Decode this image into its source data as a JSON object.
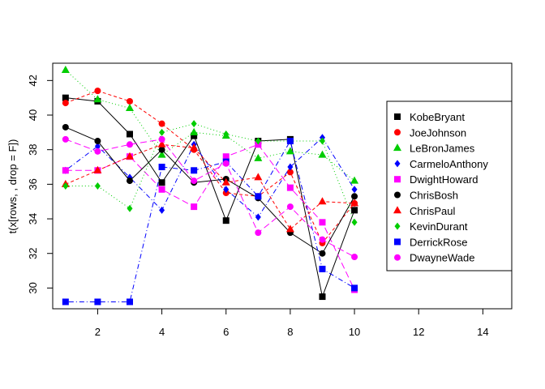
{
  "chart_data": {
    "type": "line",
    "title": "",
    "xlabel": "",
    "ylabel": "t(x[rows, , drop = F])",
    "xlim": [
      0.6,
      14.9
    ],
    "ylim": [
      28.8,
      43.0
    ],
    "xticks": [
      2,
      4,
      6,
      8,
      10,
      12,
      14
    ],
    "yticks": [
      30,
      32,
      34,
      36,
      38,
      40,
      42
    ],
    "legend_position": "right",
    "series": [
      {
        "name": "KobeBryant",
        "color": "#000000",
        "marker": "square",
        "dash": "none",
        "x": [
          1,
          2,
          3,
          4,
          5,
          6,
          7,
          8,
          9,
          10
        ],
        "y": [
          41.0,
          40.8,
          38.9,
          36.1,
          38.8,
          33.9,
          38.5,
          38.6,
          29.5,
          34.5
        ]
      },
      {
        "name": "JoeJohnson",
        "color": "#ff0000",
        "marker": "circle",
        "dash": "4,3",
        "x": [
          1,
          2,
          3,
          4,
          5,
          6,
          7,
          8,
          9,
          10
        ],
        "y": [
          40.7,
          41.4,
          40.8,
          39.5,
          38.0,
          35.5,
          35.3,
          36.7,
          32.6,
          34.9
        ]
      },
      {
        "name": "LeBronJames",
        "color": "#00cd00",
        "marker": "triangle",
        "dash": "1,3",
        "x": [
          1,
          2,
          3,
          4,
          5,
          6,
          7,
          8,
          9,
          10
        ],
        "y": [
          42.6,
          40.9,
          40.4,
          37.7,
          39.0,
          38.8,
          37.5,
          37.9,
          37.7,
          36.2
        ]
      },
      {
        "name": "CarmeloAnthony",
        "color": "#0000ff",
        "marker": "diamond",
        "dash": "1,3,6,3",
        "x": [
          1,
          2,
          3,
          4,
          5,
          6,
          7,
          8,
          9,
          10
        ],
        "y": [
          36.8,
          38.2,
          36.4,
          34.5,
          38.3,
          35.7,
          34.1,
          37.0,
          38.7,
          35.7
        ]
      },
      {
        "name": "DwightHoward",
        "color": "#ff00ff",
        "marker": "square",
        "dash": "8,4",
        "x": [
          1,
          2,
          3,
          4,
          5,
          6,
          7,
          8,
          9,
          10
        ],
        "y": [
          36.8,
          36.8,
          37.6,
          35.7,
          34.7,
          37.6,
          38.3,
          35.8,
          33.8,
          29.9
        ]
      },
      {
        "name": "ChrisBosh",
        "color": "#000000",
        "marker": "circle",
        "dash": "none",
        "x": [
          1,
          2,
          3,
          4,
          5,
          6,
          7,
          8,
          9,
          10
        ],
        "y": [
          39.3,
          38.5,
          36.2,
          38.0,
          36.1,
          36.3,
          35.2,
          33.2,
          32.0,
          35.3
        ]
      },
      {
        "name": "ChrisPaul",
        "color": "#ff0000",
        "marker": "triangle",
        "dash": "4,3",
        "x": [
          1,
          2,
          3,
          4,
          5,
          6,
          7,
          8,
          9,
          10
        ],
        "y": [
          36.0,
          36.8,
          37.6,
          38.3,
          38.1,
          36.1,
          36.4,
          33.4,
          35.0,
          34.9
        ]
      },
      {
        "name": "KevinDurant",
        "color": "#00cd00",
        "marker": "diamond",
        "dash": "1,3",
        "x": [
          1,
          2,
          3,
          4,
          5,
          6,
          7,
          8,
          9,
          10
        ],
        "y": [
          35.9,
          35.9,
          34.6,
          39.0,
          39.5,
          38.9,
          38.5,
          38.5,
          38.5,
          33.8
        ]
      },
      {
        "name": "DerrickRose",
        "color": "#0000ff",
        "marker": "square",
        "dash": "1,3,6,3",
        "x": [
          1,
          2,
          3,
          4,
          5,
          6,
          7,
          8,
          9,
          10
        ],
        "y": [
          29.2,
          29.2,
          29.2,
          37.0,
          36.8,
          37.3,
          35.3,
          38.5,
          31.1,
          30.0
        ]
      },
      {
        "name": "DwayneWade",
        "color": "#ff00ff",
        "marker": "circle",
        "dash": "8,4",
        "x": [
          1,
          2,
          3,
          4,
          5,
          6,
          7,
          8,
          9,
          10
        ],
        "y": [
          38.6,
          37.9,
          38.3,
          38.6,
          36.2,
          37.2,
          33.2,
          34.7,
          32.8,
          31.8
        ]
      }
    ]
  }
}
